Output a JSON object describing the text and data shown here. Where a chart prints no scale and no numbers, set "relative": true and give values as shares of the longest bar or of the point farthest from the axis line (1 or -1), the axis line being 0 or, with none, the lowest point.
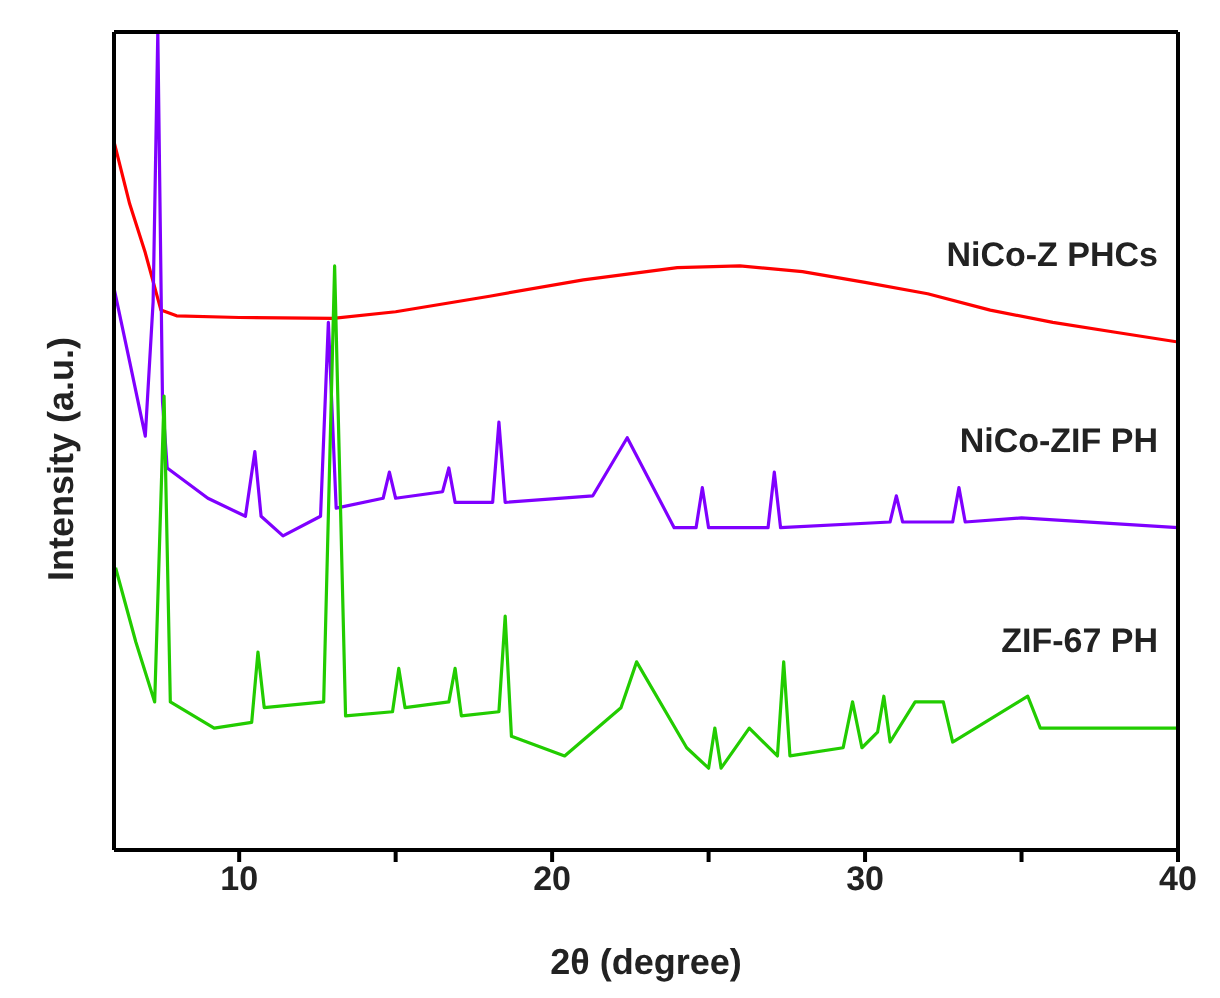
{
  "chart_data": {
    "type": "line",
    "relative": true,
    "xlabel": "2θ (degree)",
    "ylabel": "Intensity (a.u.)",
    "xlim": [
      6,
      40
    ],
    "xticks": [
      10,
      {
        "value": 15,
        "label": null
      },
      20,
      {
        "value": 25,
        "label": null
      },
      30,
      {
        "value": 35,
        "label": null
      },
      40
    ],
    "marker": "none",
    "line_style": "solid",
    "series": [
      {
        "name": "NiCo-Z PHCs",
        "color": "#ff0000",
        "x": [
          6.0,
          6.5,
          7.0,
          7.5,
          8,
          10,
          13,
          15,
          18,
          21,
          24,
          26,
          28,
          30,
          32,
          34,
          36,
          38,
          40
        ],
        "values": [
          0.866,
          0.79,
          0.73,
          0.66,
          0.653,
          0.651,
          0.65,
          0.658,
          0.677,
          0.697,
          0.712,
          0.714,
          0.707,
          0.694,
          0.68,
          0.66,
          0.645,
          0.633,
          0.621
        ]
      },
      {
        "name": "NiCo-ZIF PH",
        "color": "#7f00ff",
        "x": [
          6.0,
          6.5,
          7.0,
          7.25,
          7.4,
          7.55,
          7.7,
          9,
          10.2,
          10.5,
          10.7,
          11.4,
          12.6,
          12.85,
          13.1,
          14.6,
          14.8,
          15.0,
          16.5,
          16.7,
          16.9,
          18.1,
          18.3,
          18.5,
          21.3,
          22.4,
          23.9,
          24.6,
          24.8,
          25.0,
          26.9,
          27.1,
          27.3,
          30.8,
          31.0,
          31.2,
          32.8,
          33.0,
          33.2,
          35,
          40
        ],
        "values": [
          0.687,
          0.597,
          0.506,
          0.67,
          1.0,
          0.548,
          0.467,
          0.43,
          0.408,
          0.487,
          0.408,
          0.384,
          0.408,
          0.645,
          0.418,
          0.43,
          0.462,
          0.43,
          0.438,
          0.467,
          0.425,
          0.425,
          0.523,
          0.425,
          0.433,
          0.504,
          0.394,
          0.394,
          0.443,
          0.394,
          0.394,
          0.462,
          0.394,
          0.401,
          0.433,
          0.401,
          0.401,
          0.443,
          0.401,
          0.406,
          0.394
        ]
      },
      {
        "name": "ZIF-67 PH",
        "color": "#22cc00",
        "x": [
          6.05,
          6.7,
          7.3,
          7.6,
          7.8,
          9.2,
          10.4,
          10.6,
          10.8,
          12.7,
          13.05,
          13.4,
          14.9,
          15.1,
          15.3,
          16.7,
          16.9,
          17.1,
          18.3,
          18.5,
          18.7,
          20.4,
          22.2,
          22.7,
          24.3,
          25.0,
          25.2,
          25.4,
          26.3,
          27.2,
          27.4,
          27.6,
          29.3,
          29.6,
          29.9,
          30.4,
          30.6,
          30.8,
          31.6,
          32.5,
          32.8,
          35.2,
          35.6,
          40
        ],
        "values": [
          0.345,
          0.254,
          0.181,
          0.555,
          0.181,
          0.149,
          0.156,
          0.242,
          0.174,
          0.181,
          0.714,
          0.164,
          0.169,
          0.222,
          0.174,
          0.181,
          0.222,
          0.164,
          0.169,
          0.286,
          0.139,
          0.115,
          0.174,
          0.23,
          0.125,
          0.1,
          0.149,
          0.1,
          0.149,
          0.115,
          0.23,
          0.115,
          0.125,
          0.181,
          0.125,
          0.144,
          0.188,
          0.132,
          0.181,
          0.181,
          0.132,
          0.188,
          0.149,
          0.149
        ]
      }
    ]
  }
}
